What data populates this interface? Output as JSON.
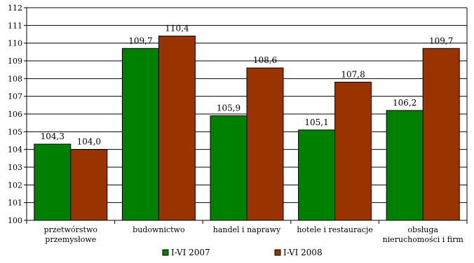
{
  "chart_data": {
    "type": "bar",
    "categories": [
      [
        "przetwórstwo",
        "przemysłowe"
      ],
      [
        "budownictwo"
      ],
      [
        "handel i naprawy"
      ],
      [
        "hotele i restauracje"
      ],
      [
        "obsługa",
        "nieruchomości i firm"
      ]
    ],
    "series": [
      {
        "name": "I-VI 2007",
        "values": [
          104.3,
          109.7,
          105.9,
          105.1,
          106.2
        ],
        "labels": [
          "104,3",
          "109,7",
          "105,9",
          "105,1",
          "106,2"
        ],
        "color": "#008000"
      },
      {
        "name": "I-VI 2008",
        "values": [
          104.0,
          110.4,
          108.6,
          107.8,
          109.7
        ],
        "labels": [
          "104,0",
          "110,4",
          "108,6",
          "107,8",
          "109,7"
        ],
        "color": "#993300"
      }
    ],
    "ylim": [
      100,
      112
    ],
    "ytick_step": 1,
    "grid": true,
    "legend": "bottom"
  }
}
